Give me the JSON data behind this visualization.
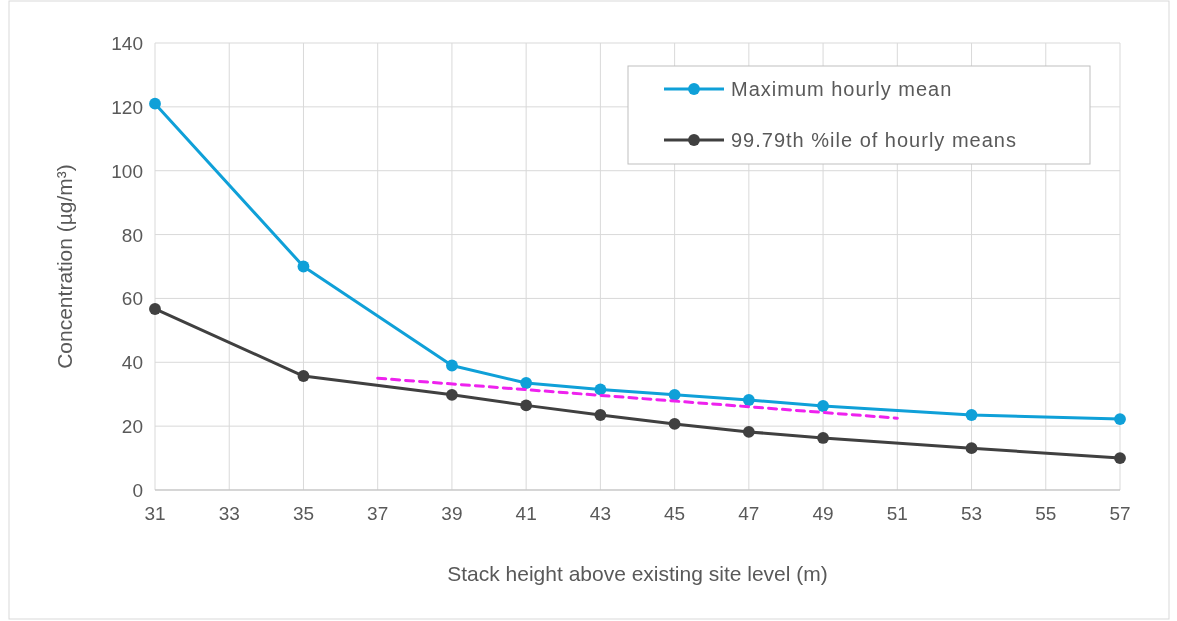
{
  "chart_data": {
    "type": "line",
    "xlabel": "Stack height above existing site level (m)",
    "ylabel": "Concentration (µg/m³)",
    "xlim": [
      31,
      57
    ],
    "xticks": [
      31,
      33,
      35,
      37,
      39,
      41,
      43,
      45,
      47,
      49,
      51,
      53,
      55,
      57
    ],
    "ylim": [
      0,
      140
    ],
    "yticks": [
      0,
      20,
      40,
      60,
      80,
      100,
      120,
      140
    ],
    "grid": true,
    "legend": "top right",
    "marker": "circle",
    "line_style": "solid",
    "x": [
      31,
      35,
      39,
      41,
      43,
      45,
      47,
      49,
      53,
      57
    ],
    "series": [
      {
        "name": "Maximum hourly mean",
        "color": "#0fa0d8",
        "values": [
          121,
          70,
          39,
          33.5,
          31.5,
          29.8,
          28.2,
          26.3,
          23.5,
          22.2
        ]
      },
      {
        "name": "99.79th %ile of hourly means",
        "color": "#404040",
        "values": [
          56.7,
          35.7,
          29.8,
          26.5,
          23.5,
          20.7,
          18.2,
          16.3,
          13.1,
          10
        ]
      },
      {
        "color": "#ee22ee",
        "x": [
          37,
          51
        ],
        "values": [
          35,
          22.5
        ],
        "line_style": "dashed",
        "marker": "none"
      }
    ]
  }
}
